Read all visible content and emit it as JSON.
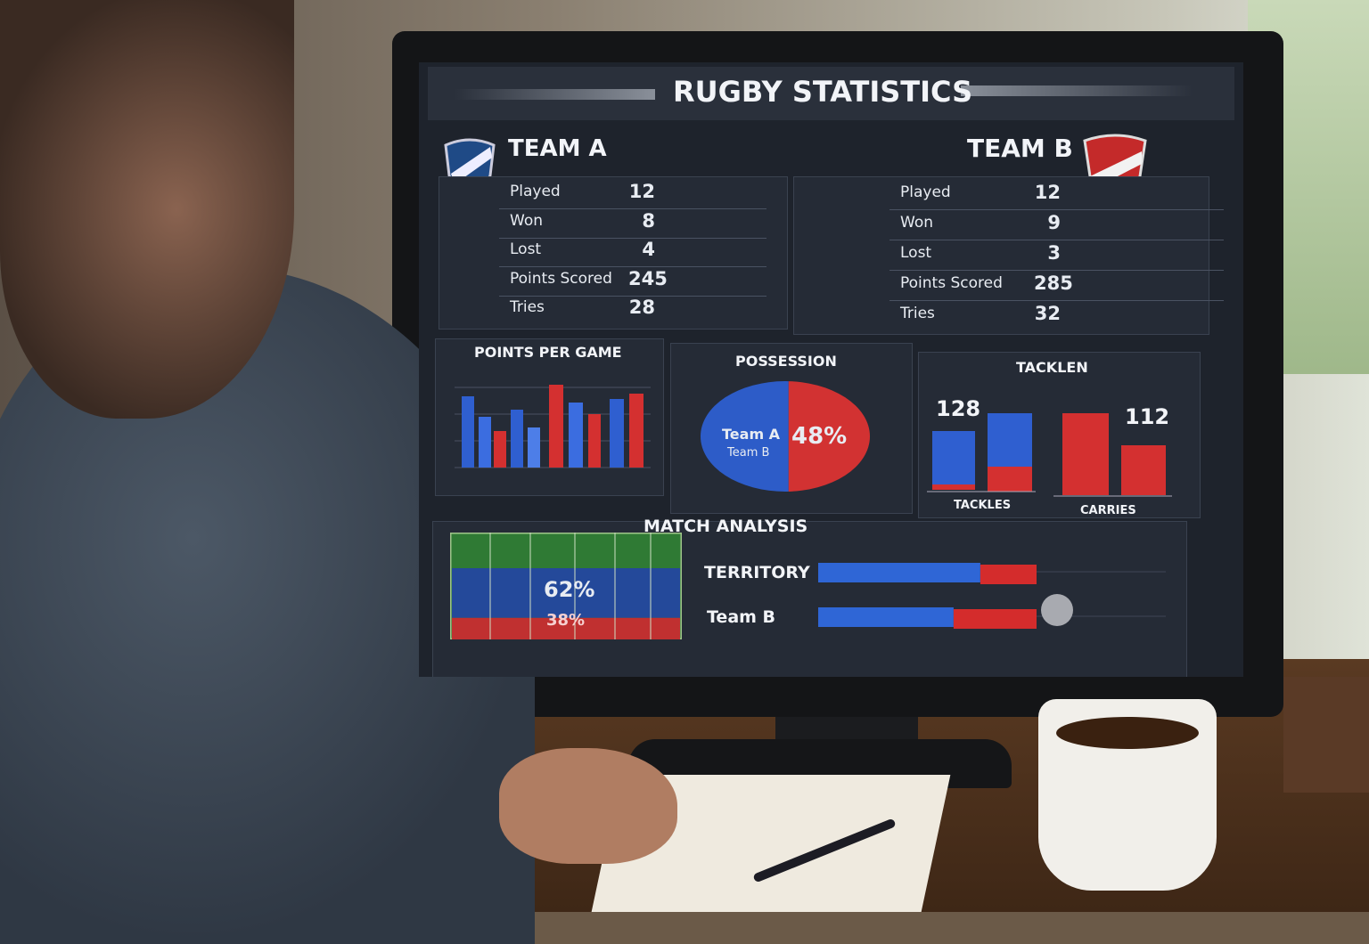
{
  "title": "RUGBY STATISTICS",
  "teams": [
    {
      "name": "TEAM A",
      "stats": [
        {
          "label": "Played",
          "value": 12
        },
        {
          "label": "Won",
          "value": 8
        },
        {
          "label": "Lost",
          "value": 4
        },
        {
          "label": "Points Scored",
          "value": 245
        },
        {
          "label": "Tries",
          "value": 28
        }
      ]
    },
    {
      "name": "TEAM B",
      "stats": [
        {
          "label": "Played",
          "value": 12
        },
        {
          "label": "Won",
          "value": 9
        },
        {
          "label": "Lost",
          "value": 3
        },
        {
          "label": "Points Scored",
          "value": 285
        },
        {
          "label": "Tries",
          "value": 32
        }
      ]
    }
  ],
  "points_per_game": {
    "title": "POINTS PER GAME"
  },
  "possession": {
    "title": "POSSESSION",
    "labels": [
      "Team A",
      "Team B"
    ],
    "value": 48,
    "value_label": "48%"
  },
  "tackles": {
    "title": "TACKLEN",
    "values": [
      128,
      112
    ],
    "categories": [
      "TACKLES",
      "CARRIES"
    ]
  },
  "match_analysis": {
    "title": "MATCH ANALYSIS",
    "values": [
      62,
      38
    ],
    "value_labels": [
      "62%",
      "38%"
    ],
    "rows": [
      "TERRITORY",
      "Team B"
    ]
  }
}
